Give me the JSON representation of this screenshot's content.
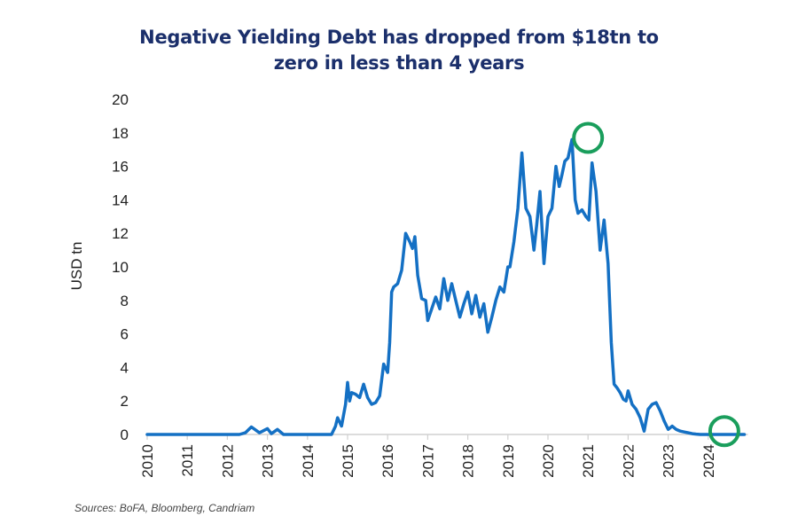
{
  "chart_data": {
    "type": "line",
    "title_lines": [
      "Negative Yielding Debt has dropped from $18tn to",
      "zero in less than 4 years"
    ],
    "ylabel": "USD tn",
    "xlabel": "",
    "ylim": [
      0,
      20
    ],
    "xlim": [
      2010,
      2024.9
    ],
    "yticks": [
      "0",
      "2",
      "4",
      "6",
      "8",
      "10",
      "12",
      "14",
      "16",
      "18",
      "20"
    ],
    "xticks": [
      "2010",
      "2011",
      "2012",
      "2013",
      "2014",
      "2015",
      "2016",
      "2017",
      "2018",
      "2019",
      "2020",
      "2021",
      "2022",
      "2023",
      "2024"
    ],
    "grid": false,
    "series": [
      {
        "name": "Negative Yielding Debt",
        "color": "#1470c4",
        "x": [
          2010,
          2012.3,
          2012.45,
          2012.6,
          2012.8,
          2013.0,
          2013.1,
          2013.25,
          2013.4,
          2014.6,
          2014.7,
          2014.75,
          2014.85,
          2014.95,
          2015.0,
          2015.05,
          2015.1,
          2015.2,
          2015.3,
          2015.4,
          2015.5,
          2015.6,
          2015.7,
          2015.8,
          2015.9,
          2016.0,
          2016.05,
          2016.1,
          2016.15,
          2016.25,
          2016.35,
          2016.45,
          2016.55,
          2016.62,
          2016.68,
          2016.75,
          2016.85,
          2016.95,
          2017.0,
          2017.1,
          2017.2,
          2017.3,
          2017.4,
          2017.5,
          2017.6,
          2017.7,
          2017.8,
          2017.9,
          2018.0,
          2018.1,
          2018.2,
          2018.3,
          2018.4,
          2018.5,
          2018.6,
          2018.7,
          2018.8,
          2018.9,
          2019.0,
          2019.05,
          2019.15,
          2019.25,
          2019.35,
          2019.45,
          2019.55,
          2019.65,
          2019.72,
          2019.8,
          2019.9,
          2020.0,
          2020.1,
          2020.2,
          2020.28,
          2020.35,
          2020.42,
          2020.5,
          2020.6,
          2020.68,
          2020.75,
          2020.85,
          2020.95,
          2021.02,
          2021.1,
          2021.2,
          2021.3,
          2021.4,
          2021.5,
          2021.58,
          2021.65,
          2021.72,
          2021.8,
          2021.88,
          2021.95,
          2022.0,
          2022.1,
          2022.2,
          2022.3,
          2022.4,
          2022.5,
          2022.6,
          2022.7,
          2022.8,
          2022.9,
          2023.0,
          2023.1,
          2023.2,
          2023.3,
          2023.4,
          2023.5,
          2023.6,
          2023.7,
          2023.8,
          2023.9,
          2024.0,
          2024.1,
          2024.2,
          2024.3,
          2024.9
        ],
        "values": [
          0,
          0,
          0.1,
          0.45,
          0.1,
          0.35,
          0.05,
          0.3,
          0,
          0,
          0.5,
          1.0,
          0.5,
          1.8,
          3.1,
          2.0,
          2.5,
          2.4,
          2.2,
          3.0,
          2.2,
          1.8,
          1.9,
          2.3,
          4.2,
          3.7,
          5.5,
          8.5,
          8.8,
          9.0,
          9.8,
          12.0,
          11.5,
          11.1,
          11.8,
          9.5,
          8.1,
          8.0,
          6.8,
          7.5,
          8.2,
          7.5,
          9.3,
          8.0,
          9.0,
          8.0,
          7.0,
          7.8,
          8.5,
          7.2,
          8.3,
          7.0,
          7.8,
          6.1,
          7.0,
          8.0,
          8.8,
          8.5,
          10.0,
          10.0,
          11.5,
          13.5,
          16.8,
          13.5,
          13.0,
          11.0,
          12.5,
          14.5,
          10.2,
          13.0,
          13.5,
          16.0,
          14.8,
          15.5,
          16.3,
          16.5,
          17.6,
          14.0,
          13.2,
          13.4,
          13.0,
          12.8,
          16.2,
          14.5,
          11.0,
          12.8,
          10.2,
          5.5,
          3.0,
          2.8,
          2.5,
          2.1,
          2.0,
          2.6,
          1.8,
          1.5,
          1.0,
          0.2,
          1.5,
          1.8,
          1.9,
          1.4,
          0.8,
          0.3,
          0.5,
          0.3,
          0.2,
          0.15,
          0.1,
          0.05,
          0.02,
          0.0,
          0.0,
          0.0,
          0.0,
          0.0,
          0.0,
          0.0
        ]
      }
    ],
    "annotations": [
      {
        "type": "circle",
        "x": 2021.0,
        "y": 17.7,
        "color": "#1a9e5c",
        "note": "peak"
      },
      {
        "type": "circle",
        "x": 2024.4,
        "y": 0.2,
        "color": "#1a9e5c",
        "note": "zero"
      }
    ],
    "source": "Sources: BoFA, Bloomberg, Candriam"
  }
}
